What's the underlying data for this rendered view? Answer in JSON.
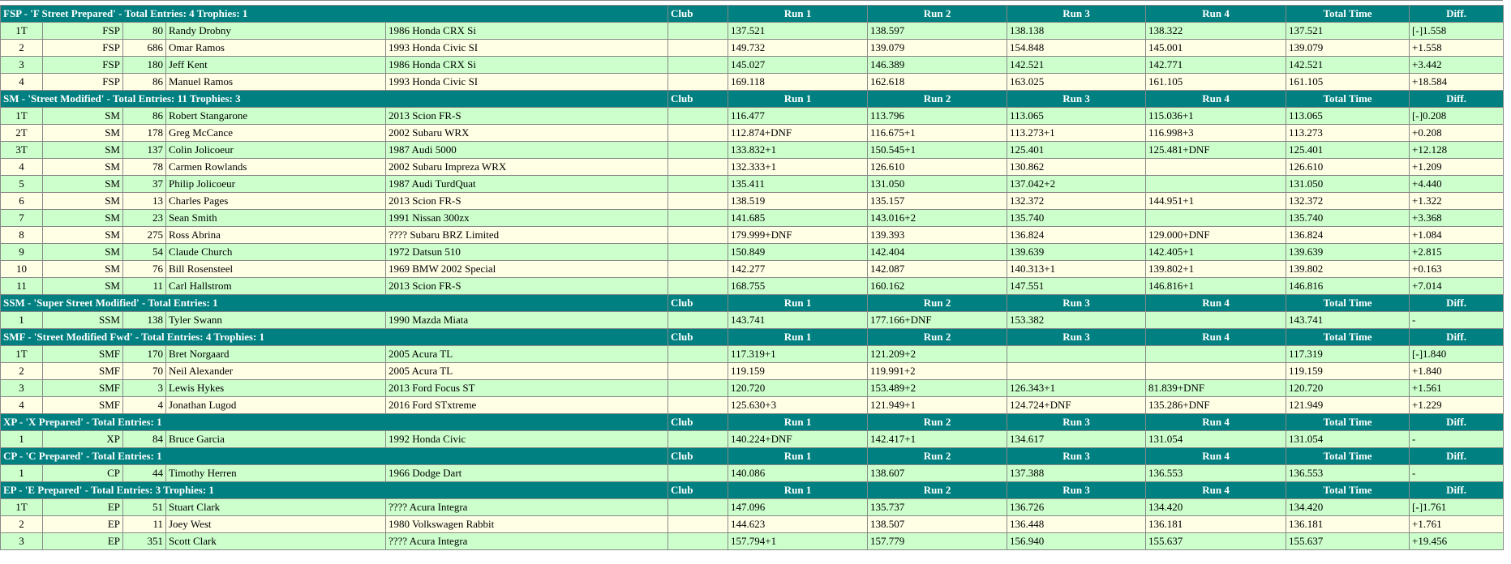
{
  "columns": [
    "Club",
    "Run 1",
    "Run 2",
    "Run 3",
    "Run 4",
    "Total Time",
    "Diff."
  ],
  "sections": [
    {
      "title": "FSP - 'F Street Prepared' - Total Entries: 4 Trophies: 1",
      "rows": [
        {
          "pos": "1T",
          "class": "FSP",
          "num": "80",
          "driver": "Randy Drobny",
          "car": "1986 Honda CRX Si",
          "runs": [
            "137.521",
            "138.597",
            "138.138",
            "138.322"
          ],
          "total": "137.521",
          "diff": "[-]1.558"
        },
        {
          "pos": "2",
          "class": "FSP",
          "num": "686",
          "driver": "Omar Ramos",
          "car": "1993 Honda Civic SI",
          "runs": [
            "149.732",
            "139.079",
            "154.848",
            "145.001"
          ],
          "total": "139.079",
          "diff": "+1.558"
        },
        {
          "pos": "3",
          "class": "FSP",
          "num": "180",
          "driver": "Jeff Kent",
          "car": "1986 Honda CRX Si",
          "runs": [
            "145.027",
            "146.389",
            "142.521",
            "142.771"
          ],
          "total": "142.521",
          "diff": "+3.442"
        },
        {
          "pos": "4",
          "class": "FSP",
          "num": "86",
          "driver": "Manuel Ramos",
          "car": "1993 Honda Civic SI",
          "runs": [
            "169.118",
            "162.618",
            "163.025",
            "161.105"
          ],
          "total": "161.105",
          "diff": "+18.584"
        }
      ]
    },
    {
      "title": "SM - 'Street Modified' - Total Entries: 11 Trophies: 3",
      "rows": [
        {
          "pos": "1T",
          "class": "SM",
          "num": "86",
          "driver": "Robert Stangarone",
          "car": "2013 Scion FR-S",
          "runs": [
            "116.477",
            "113.796",
            "113.065",
            "115.036+1"
          ],
          "total": "113.065",
          "diff": "[-]0.208"
        },
        {
          "pos": "2T",
          "class": "SM",
          "num": "178",
          "driver": "Greg McCance",
          "car": "2002 Subaru WRX",
          "runs": [
            "112.874+DNF",
            "116.675+1",
            "113.273+1",
            "116.998+3"
          ],
          "total": "113.273",
          "diff": "+0.208"
        },
        {
          "pos": "3T",
          "class": "SM",
          "num": "137",
          "driver": "Colin Jolicoeur",
          "car": "1987 Audi 5000",
          "runs": [
            "133.832+1",
            "150.545+1",
            "125.401",
            "125.481+DNF"
          ],
          "total": "125.401",
          "diff": "+12.128"
        },
        {
          "pos": "4",
          "class": "SM",
          "num": "78",
          "driver": "Carmen Rowlands",
          "car": "2002 Subaru Impreza WRX",
          "runs": [
            "132.333+1",
            "126.610",
            "130.862"
          ],
          "total": "126.610",
          "diff": "+1.209"
        },
        {
          "pos": "5",
          "class": "SM",
          "num": "37",
          "driver": "Philip Jolicoeur",
          "car": "1987 Audi TurdQuat",
          "runs": [
            "135.411",
            "131.050",
            "137.042+2"
          ],
          "total": "131.050",
          "diff": "+4.440"
        },
        {
          "pos": "6",
          "class": "SM",
          "num": "13",
          "driver": "Charles Pages",
          "car": "2013 Scion FR-S",
          "runs": [
            "138.519",
            "135.157",
            "132.372",
            "144.951+1"
          ],
          "total": "132.372",
          "diff": "+1.322"
        },
        {
          "pos": "7",
          "class": "SM",
          "num": "23",
          "driver": "Sean Smith",
          "car": "1991 Nissan 300zx",
          "runs": [
            "141.685",
            "143.016+2",
            "135.740"
          ],
          "total": "135.740",
          "diff": "+3.368"
        },
        {
          "pos": "8",
          "class": "SM",
          "num": "275",
          "driver": "Ross Abrina",
          "car": "???? Subaru BRZ Limited",
          "runs": [
            "179.999+DNF",
            "139.393",
            "136.824",
            "129.000+DNF"
          ],
          "total": "136.824",
          "diff": "+1.084"
        },
        {
          "pos": "9",
          "class": "SM",
          "num": "54",
          "driver": "Claude Church",
          "car": "1972 Datsun 510",
          "runs": [
            "150.849",
            "142.404",
            "139.639",
            "142.405+1"
          ],
          "total": "139.639",
          "diff": "+2.815"
        },
        {
          "pos": "10",
          "class": "SM",
          "num": "76",
          "driver": "Bill Rosensteel",
          "car": "1969 BMW 2002 Special",
          "runs": [
            "142.277",
            "142.087",
            "140.313+1",
            "139.802+1"
          ],
          "total": "139.802",
          "diff": "+0.163"
        },
        {
          "pos": "11",
          "class": "SM",
          "num": "11",
          "driver": "Carl Hallstrom",
          "car": "2013 Scion FR-S",
          "runs": [
            "168.755",
            "160.162",
            "147.551",
            "146.816+1"
          ],
          "total": "146.816",
          "diff": "+7.014"
        }
      ]
    },
    {
      "title": "SSM - 'Super Street Modified' - Total Entries: 1",
      "rows": [
        {
          "pos": "1",
          "class": "SSM",
          "num": "138",
          "driver": "Tyler Swann",
          "car": "1990 Mazda Miata",
          "runs": [
            "143.741",
            "177.166+DNF",
            "153.382"
          ],
          "total": "143.741",
          "diff": "-"
        }
      ]
    },
    {
      "title": "SMF - 'Street Modified Fwd' - Total Entries: 4 Trophies: 1",
      "rows": [
        {
          "pos": "1T",
          "class": "SMF",
          "num": "170",
          "driver": "Bret Norgaard",
          "car": "2005 Acura TL",
          "runs": [
            "117.319+1",
            "121.209+2"
          ],
          "total": "117.319",
          "diff": "[-]1.840"
        },
        {
          "pos": "2",
          "class": "SMF",
          "num": "70",
          "driver": "Neil Alexander",
          "car": "2005 Acura TL",
          "runs": [
            "119.159",
            "119.991+2"
          ],
          "total": "119.159",
          "diff": "+1.840"
        },
        {
          "pos": "3",
          "class": "SMF",
          "num": "3",
          "driver": "Lewis Hykes",
          "car": "2013 Ford Focus ST",
          "runs": [
            "120.720",
            "153.489+2",
            "126.343+1",
            "81.839+DNF"
          ],
          "total": "120.720",
          "diff": "+1.561"
        },
        {
          "pos": "4",
          "class": "SMF",
          "num": "4",
          "driver": "Jonathan Lugod",
          "car": "2016 Ford STxtreme",
          "runs": [
            "125.630+3",
            "121.949+1",
            "124.724+DNF",
            "135.286+DNF"
          ],
          "total": "121.949",
          "diff": "+1.229"
        }
      ]
    },
    {
      "title": "XP - 'X Prepared' - Total Entries: 1",
      "rows": [
        {
          "pos": "1",
          "class": "XP",
          "num": "84",
          "driver": "Bruce Garcia",
          "car": "1992 Honda Civic",
          "runs": [
            "140.224+DNF",
            "142.417+1",
            "134.617",
            "131.054"
          ],
          "total": "131.054",
          "diff": "-"
        }
      ]
    },
    {
      "title": "CP - 'C Prepared' - Total Entries: 1",
      "rows": [
        {
          "pos": "1",
          "class": "CP",
          "num": "44",
          "driver": "Timothy Herren",
          "car": "1966 Dodge Dart",
          "runs": [
            "140.086",
            "138.607",
            "137.388",
            "136.553"
          ],
          "total": "136.553",
          "diff": "-"
        }
      ]
    },
    {
      "title": "EP - 'E Prepared' - Total Entries: 3 Trophies: 1",
      "rows": [
        {
          "pos": "1T",
          "class": "EP",
          "num": "51",
          "driver": "Stuart Clark",
          "car": "???? Acura Integra",
          "runs": [
            "147.096",
            "135.737",
            "136.726",
            "134.420"
          ],
          "total": "134.420",
          "diff": "[-]1.761"
        },
        {
          "pos": "2",
          "class": "EP",
          "num": "11",
          "driver": "Joey West",
          "car": "1980 Volkswagen Rabbit",
          "runs": [
            "144.623",
            "138.507",
            "136.448",
            "136.181"
          ],
          "total": "136.181",
          "diff": "+1.761"
        },
        {
          "pos": "3",
          "class": "EP",
          "num": "351",
          "driver": "Scott Clark",
          "car": "???? Acura Integra",
          "runs": [
            "157.794+1",
            "157.779",
            "156.940",
            "155.637"
          ],
          "total": "155.637",
          "diff": "+19.456"
        }
      ]
    }
  ]
}
